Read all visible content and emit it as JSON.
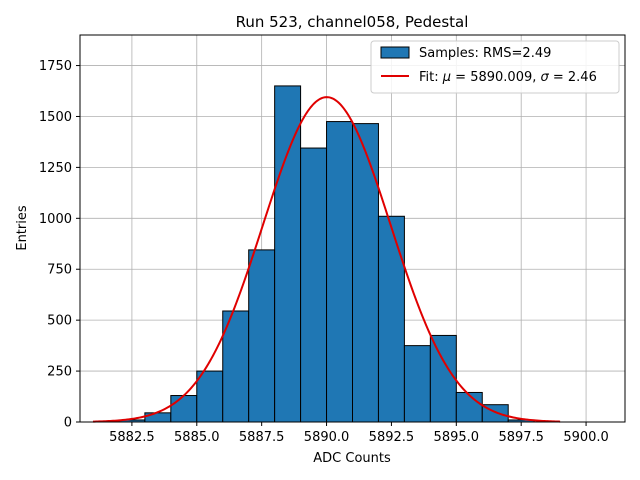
{
  "chart_data": {
    "type": "bar",
    "title": "Run 523, channel058, Pedestal",
    "xlabel": "ADC Counts",
    "ylabel": "Entries",
    "xlim": [
      5880.5,
      5901.5
    ],
    "ylim": [
      0,
      1900
    ],
    "x_ticks": [
      5882.5,
      5885.0,
      5887.5,
      5890.0,
      5892.5,
      5895.0,
      5897.5,
      5900.0
    ],
    "x_tick_labels": [
      "5882.5",
      "5885.0",
      "5887.5",
      "5890.0",
      "5892.5",
      "5895.0",
      "5897.5",
      "5900.0"
    ],
    "y_ticks": [
      0,
      250,
      500,
      750,
      1000,
      1250,
      1500,
      1750
    ],
    "y_tick_labels": [
      "0",
      "250",
      "500",
      "750",
      "1000",
      "1250",
      "1500",
      "1750"
    ],
    "grid": true,
    "legend_position": "top-right",
    "bar_color": "#1f77b4",
    "fit_color": "#e00000",
    "bins": [
      {
        "x0": 5882.0,
        "x1": 5883.0,
        "count": 10
      },
      {
        "x0": 5883.0,
        "x1": 5884.0,
        "count": 45
      },
      {
        "x0": 5884.0,
        "x1": 5885.0,
        "count": 130
      },
      {
        "x0": 5885.0,
        "x1": 5886.0,
        "count": 250
      },
      {
        "x0": 5886.0,
        "x1": 5887.0,
        "count": 545
      },
      {
        "x0": 5887.0,
        "x1": 5888.0,
        "count": 845
      },
      {
        "x0": 5888.0,
        "x1": 5889.0,
        "count": 1650
      },
      {
        "x0": 5889.0,
        "x1": 5890.0,
        "count": 1345
      },
      {
        "x0": 5890.0,
        "x1": 5891.0,
        "count": 1475
      },
      {
        "x0": 5891.0,
        "x1": 5892.0,
        "count": 1465
      },
      {
        "x0": 5892.0,
        "x1": 5893.0,
        "count": 1010
      },
      {
        "x0": 5893.0,
        "x1": 5894.0,
        "count": 375
      },
      {
        "x0": 5894.0,
        "x1": 5895.0,
        "count": 425
      },
      {
        "x0": 5895.0,
        "x1": 5896.0,
        "count": 145
      },
      {
        "x0": 5896.0,
        "x1": 5897.0,
        "count": 85
      },
      {
        "x0": 5897.0,
        "x1": 5898.0,
        "count": 10
      }
    ],
    "fit": {
      "mu": 5890.009,
      "sigma": 2.46,
      "amplitude": 1595,
      "x_range": [
        5881.0,
        5899.0
      ]
    },
    "legend": {
      "samples": "Samples: RMS=2.49",
      "fit_prefix": "Fit: ",
      "mu_symbol": "μ",
      "mu_text": " = 5890.009, ",
      "sigma_symbol": "σ",
      "sigma_text": " = 2.46"
    }
  }
}
